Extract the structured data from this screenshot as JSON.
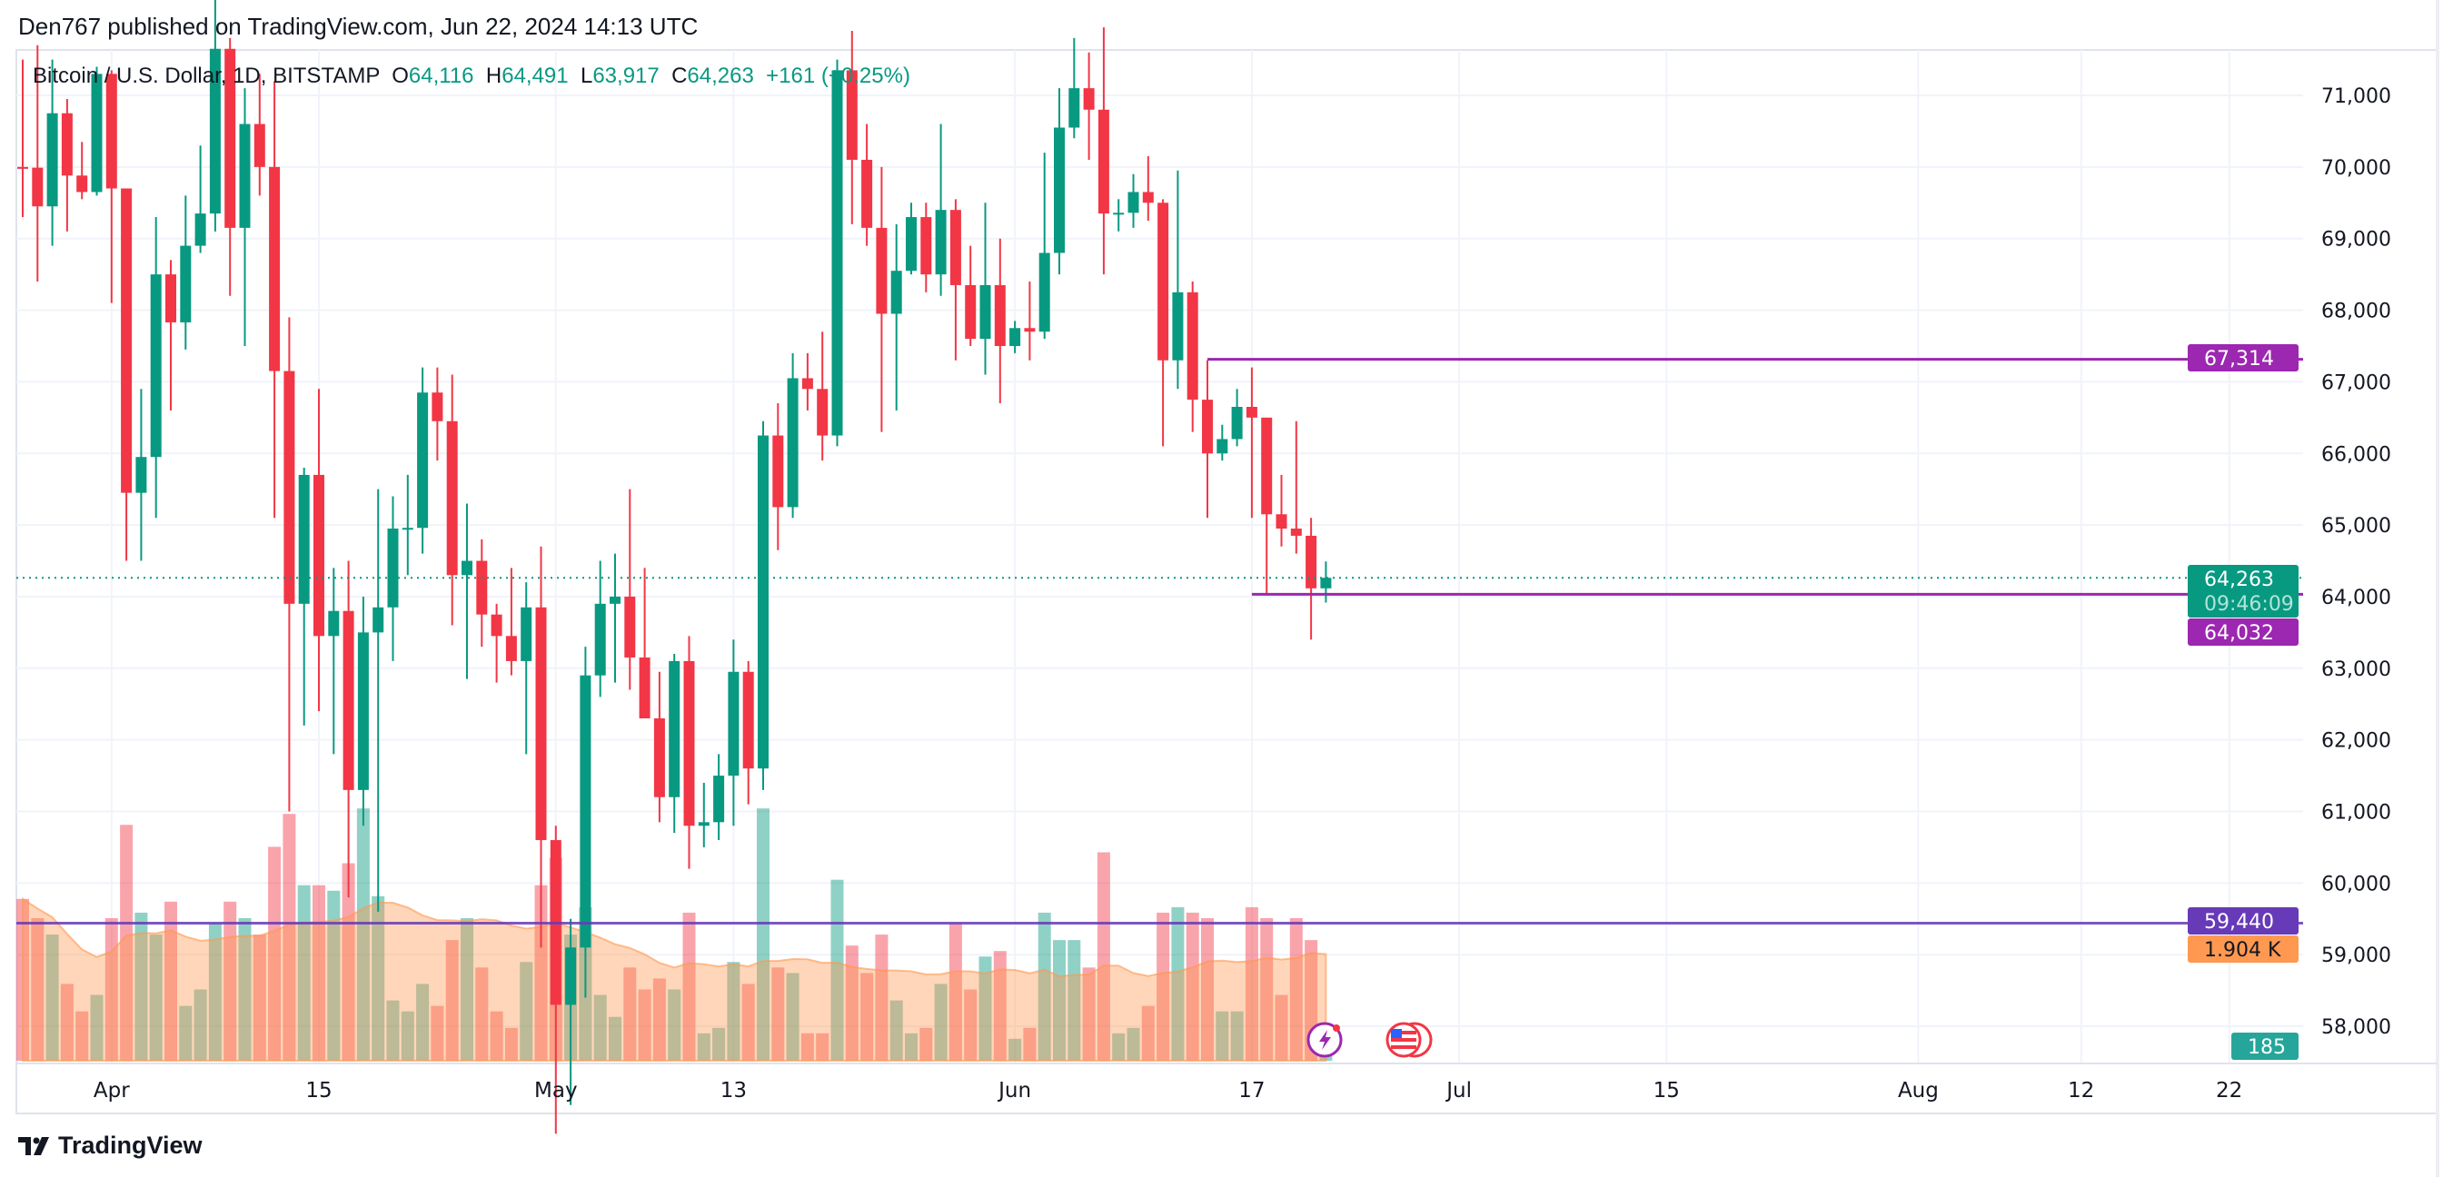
{
  "header": {
    "published": "Den767 published on TradingView.com, Jun 22, 2024 14:13 UTC"
  },
  "legend": {
    "symbol": "Bitcoin / U.S. Dollar, 1D, BITSTAMP",
    "o_label": "O",
    "o": "64,116",
    "h_label": "H",
    "h": "64,491",
    "l_label": "L",
    "l": "63,917",
    "c_label": "C",
    "c": "64,263",
    "change": "+161 (+0.25%)"
  },
  "price_tags": {
    "last_price": "64,263",
    "countdown": "09:46:09",
    "resistance": "67,314",
    "support": "64,032",
    "indicator_level": "59,440",
    "volume_ma": "1.904 K",
    "volume_last": "185"
  },
  "footer": {
    "brand": "TradingView"
  },
  "colors": {
    "up": "#089981",
    "down": "#f23645",
    "level": "#9c27b0",
    "indicator": "#673ab7",
    "volume_ma": "#ff9850"
  },
  "chart_data": {
    "type": "candlestick",
    "title": "Bitcoin / U.S. Dollar, 1D, BITSTAMP",
    "ylim": [
      57500,
      71700
    ],
    "y_ticks": [
      "71,000",
      "70,000",
      "69,000",
      "68,000",
      "67,000",
      "66,000",
      "65,000",
      "64,000",
      "63,000",
      "62,000",
      "61,000",
      "60,000",
      "59,000",
      "58,000"
    ],
    "y_tick_values": [
      71000,
      70000,
      69000,
      68000,
      67000,
      66000,
      65000,
      64000,
      63000,
      62000,
      61000,
      60000,
      59000,
      58000
    ],
    "x_ticks": [
      {
        "label": "Apr",
        "day": 6
      },
      {
        "label": "15",
        "day": 20
      },
      {
        "label": "May",
        "day": 36
      },
      {
        "label": "13",
        "day": 48
      },
      {
        "label": "Jun",
        "day": 67
      },
      {
        "label": "17",
        "day": 83
      },
      {
        "label": "Jul",
        "day": 97
      },
      {
        "label": "15",
        "day": 111
      },
      {
        "label": "Aug",
        "day": 128
      },
      {
        "label": "12",
        "day": 139
      },
      {
        "label": "22",
        "day": 149
      }
    ],
    "x_start": "2024-03-26",
    "ohlc": [
      [
        70000,
        71500,
        69300,
        69990
      ],
      [
        69990,
        71700,
        68400,
        69450
      ],
      [
        69450,
        71500,
        68900,
        70750
      ],
      [
        70750,
        70950,
        69100,
        69880
      ],
      [
        69880,
        70350,
        69550,
        69650
      ],
      [
        69650,
        71400,
        69600,
        71300
      ],
      [
        71300,
        71350,
        68100,
        69700
      ],
      [
        69700,
        69700,
        64500,
        65450
      ],
      [
        65450,
        66900,
        64500,
        65950
      ],
      [
        65950,
        69300,
        65100,
        68500
      ],
      [
        68500,
        68700,
        66600,
        67830
      ],
      [
        67830,
        69600,
        67450,
        68900
      ],
      [
        68900,
        70300,
        68800,
        69350
      ],
      [
        69350,
        72800,
        69100,
        71650
      ],
      [
        71650,
        71800,
        68200,
        69150
      ],
      [
        69150,
        71100,
        67500,
        70600
      ],
      [
        70600,
        71300,
        69600,
        70000
      ],
      [
        70000,
        71200,
        65100,
        67150
      ],
      [
        67150,
        67900,
        61000,
        63900
      ],
      [
        63900,
        65800,
        62200,
        65700
      ],
      [
        65700,
        66900,
        62400,
        63450
      ],
      [
        63450,
        64400,
        61800,
        63800
      ],
      [
        63800,
        64500,
        59800,
        61300
      ],
      [
        61300,
        64000,
        60800,
        63500
      ],
      [
        63500,
        65500,
        59600,
        63850
      ],
      [
        63850,
        65400,
        63100,
        64950
      ],
      [
        64950,
        65700,
        64300,
        64960
      ],
      [
        64960,
        67200,
        64600,
        66850
      ],
      [
        66850,
        67200,
        65900,
        66450
      ],
      [
        66450,
        67100,
        63600,
        64300
      ],
      [
        64300,
        65300,
        62850,
        64500
      ],
      [
        64500,
        64800,
        63300,
        63750
      ],
      [
        63750,
        63900,
        62800,
        63450
      ],
      [
        63450,
        64400,
        62900,
        63100
      ],
      [
        63100,
        64200,
        61800,
        63850
      ],
      [
        63850,
        64700,
        59100,
        60600
      ],
      [
        60600,
        60800,
        56500,
        58300
      ],
      [
        58300,
        59500,
        56900,
        59100
      ],
      [
        59100,
        63300,
        58400,
        62900
      ],
      [
        62900,
        64500,
        62600,
        63900
      ],
      [
        63900,
        64600,
        62800,
        64000
      ],
      [
        64000,
        65500,
        62700,
        63150
      ],
      [
        63150,
        64400,
        62300,
        62300
      ],
      [
        62300,
        62950,
        60850,
        61200
      ],
      [
        61200,
        63200,
        60700,
        63100
      ],
      [
        63100,
        63450,
        60200,
        60800
      ],
      [
        60800,
        61400,
        60500,
        60850
      ],
      [
        60850,
        61800,
        60600,
        61500
      ],
      [
        61500,
        63400,
        60800,
        62950
      ],
      [
        62950,
        63100,
        61100,
        61600
      ],
      [
        61600,
        66450,
        61300,
        66250
      ],
      [
        66250,
        66700,
        64650,
        65250
      ],
      [
        65250,
        67400,
        65100,
        67050
      ],
      [
        67050,
        67400,
        66600,
        66900
      ],
      [
        66900,
        67700,
        65900,
        66250
      ],
      [
        66250,
        71500,
        66100,
        71350
      ],
      [
        71350,
        71900,
        69200,
        70100
      ],
      [
        70100,
        70600,
        68900,
        69150
      ],
      [
        69150,
        70000,
        66300,
        67950
      ],
      [
        67950,
        69200,
        66600,
        68550
      ],
      [
        68550,
        69500,
        68500,
        69300
      ],
      [
        69300,
        69500,
        68250,
        68500
      ],
      [
        68500,
        70600,
        68200,
        69400
      ],
      [
        69400,
        69550,
        67300,
        68350
      ],
      [
        68350,
        68900,
        67500,
        67600
      ],
      [
        67600,
        69500,
        67100,
        68350
      ],
      [
        68350,
        69000,
        66700,
        67500
      ],
      [
        67500,
        67850,
        67400,
        67750
      ],
      [
        67750,
        68400,
        67300,
        67700
      ],
      [
        67700,
        70200,
        67600,
        68800
      ],
      [
        68800,
        71100,
        68500,
        70550
      ],
      [
        70550,
        71800,
        70400,
        71100
      ],
      [
        71100,
        71600,
        70100,
        70800
      ],
      [
        70800,
        71950,
        68500,
        69350
      ],
      [
        69350,
        69550,
        69100,
        69360
      ],
      [
        69360,
        69900,
        69150,
        69650
      ],
      [
        69650,
        70150,
        69250,
        69500
      ],
      [
        69500,
        69550,
        66100,
        67300
      ],
      [
        67300,
        69950,
        66900,
        68250
      ],
      [
        68250,
        68400,
        66300,
        66750
      ],
      [
        66750,
        67300,
        65100,
        66000
      ],
      [
        66000,
        66400,
        65900,
        66200
      ],
      [
        66200,
        66900,
        66100,
        66650
      ],
      [
        66650,
        67200,
        65100,
        66500
      ],
      [
        66500,
        66500,
        64050,
        65150
      ],
      [
        65150,
        65700,
        64700,
        64950
      ],
      [
        64950,
        66450,
        64600,
        64850
      ],
      [
        64850,
        65100,
        63400,
        64116
      ],
      [
        64116,
        64491,
        63917,
        64263
      ]
    ],
    "volume_k": [
      2.95,
      2.6,
      2.3,
      1.4,
      0.9,
      1.2,
      2.6,
      4.3,
      2.7,
      2.3,
      2.9,
      1.0,
      1.3,
      2.5,
      2.9,
      2.6,
      2.3,
      3.9,
      4.5,
      3.2,
      3.2,
      3.1,
      3.6,
      4.6,
      3.0,
      1.1,
      0.9,
      1.4,
      1.0,
      2.2,
      2.6,
      1.7,
      0.9,
      0.6,
      1.8,
      3.2,
      3.7,
      2.3,
      2.8,
      1.2,
      0.8,
      1.7,
      1.3,
      1.5,
      1.3,
      2.7,
      0.5,
      0.6,
      1.8,
      1.4,
      4.6,
      1.7,
      1.6,
      0.5,
      0.5,
      3.3,
      2.1,
      1.6,
      2.3,
      1.1,
      0.5,
      0.6,
      1.4,
      2.5,
      1.3,
      1.9,
      2.0,
      0.4,
      0.6,
      2.7,
      2.2,
      2.2,
      1.7,
      3.8,
      0.5,
      0.6,
      1.0,
      2.7,
      2.8,
      2.7,
      2.6,
      0.9,
      0.9,
      2.8,
      2.6,
      1.2,
      2.6,
      2.2,
      0.185
    ],
    "levels": {
      "resistance": 67314,
      "resistance_from_day": 80,
      "support": 64032,
      "support_from_day": 83,
      "indicator": 59440,
      "last": 64263,
      "volume_ma_last_k": 1.904
    }
  }
}
